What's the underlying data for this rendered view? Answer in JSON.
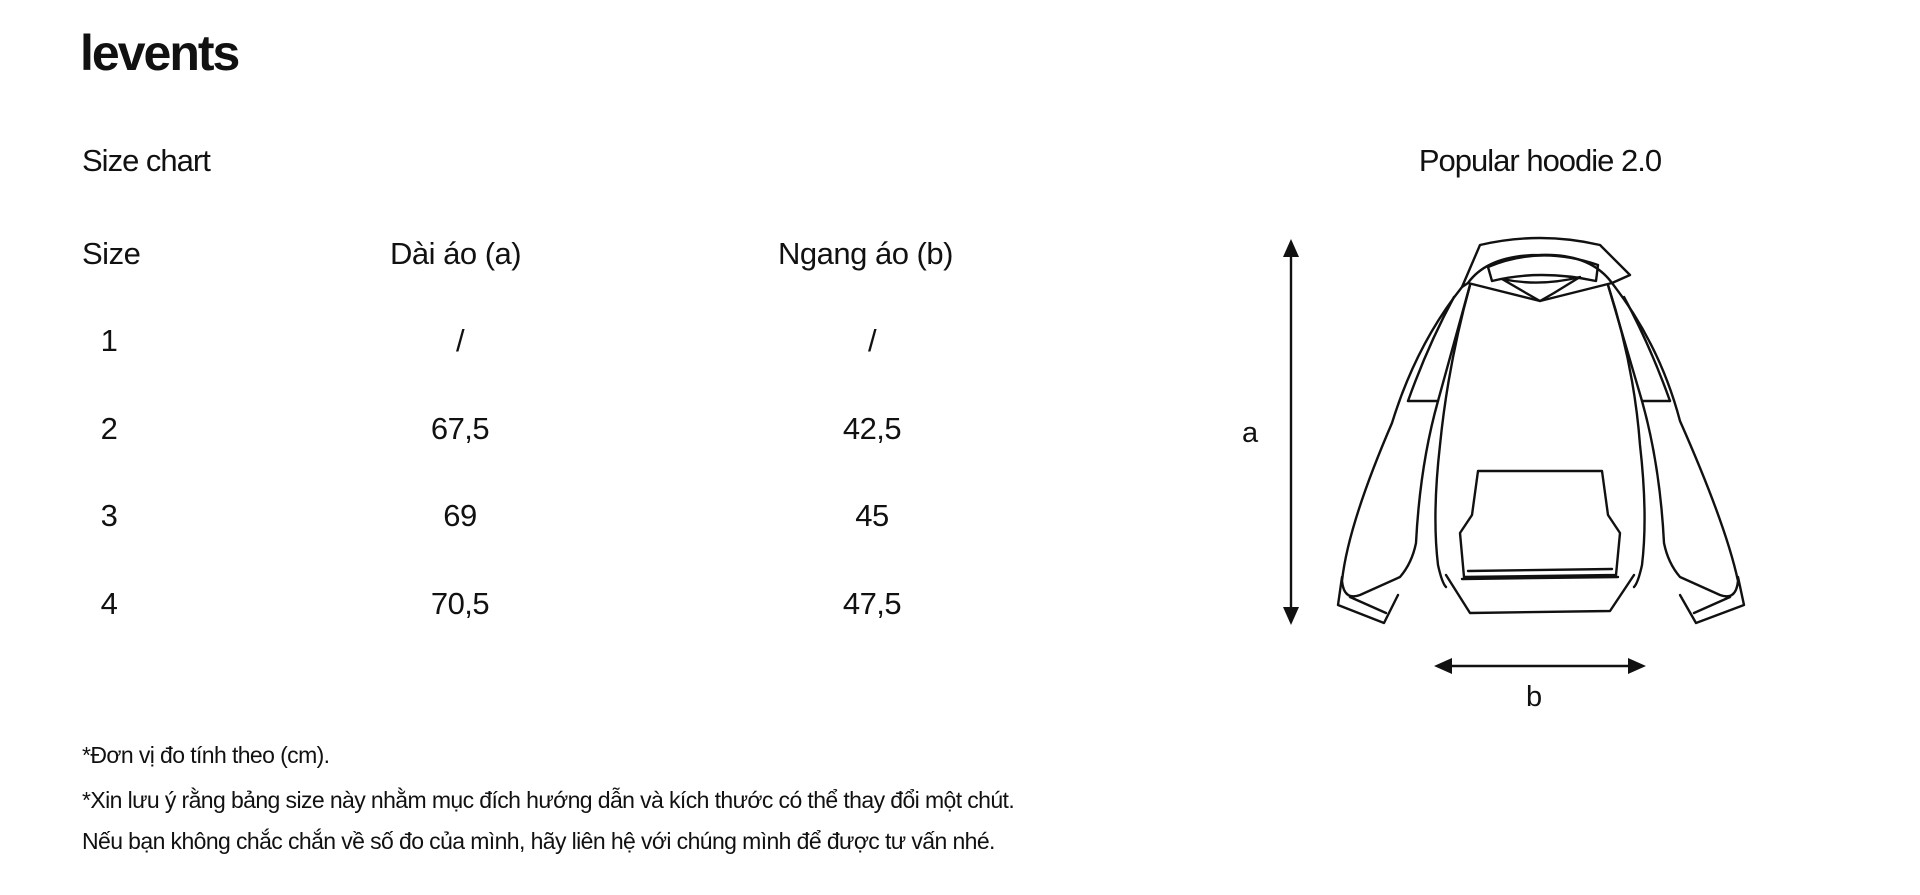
{
  "brand": "levents",
  "size_chart": {
    "title": "Size chart",
    "headers": [
      "Size",
      "Dài áo (a)",
      "Ngang áo (b)"
    ],
    "rows": [
      {
        "size": "1",
        "length_a": "/",
        "width_b": "/"
      },
      {
        "size": "2",
        "length_a": "67,5",
        "width_b": "42,5"
      },
      {
        "size": "3",
        "length_a": "69",
        "width_b": "45"
      },
      {
        "size": "4",
        "length_a": "70,5",
        "width_b": "47,5"
      }
    ]
  },
  "product": {
    "name": "Popular hoodie 2.0",
    "dimension_a": "a",
    "dimension_b": "b"
  },
  "notes": [
    "*Đơn vị đo tính theo (cm).",
    "*Xin lưu ý rằng bảng size này nhằm mục đích hướng dẫn và kích thước có thể thay đổi một chút.",
    "Nếu bạn không chắc chắn về số đo của mình, hãy liên hệ với chúng mình để được tư vấn nhé."
  ],
  "colors": {
    "text": "#111111",
    "background": "#ffffff",
    "line": "#111111"
  },
  "icons": [
    "hoodie-illustration",
    "arrow-vertical-icon",
    "arrow-horizontal-icon"
  ]
}
